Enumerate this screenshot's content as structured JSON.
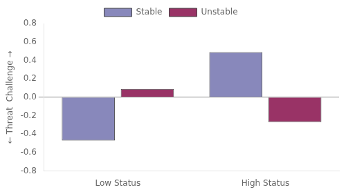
{
  "chart_data": {
    "type": "bar",
    "categories": [
      "Low Status",
      "High Status"
    ],
    "series": [
      {
        "name": "Stable",
        "color": "#8888bb",
        "values": [
          -0.47,
          0.49
        ]
      },
      {
        "name": "Unstable",
        "color": "#993366",
        "values": [
          0.09,
          -0.27
        ]
      }
    ],
    "ylabel": "← Threat  Challenge →",
    "ylim": [
      -0.8,
      0.8
    ],
    "yticks": [
      -0.8,
      -0.6,
      -0.4,
      -0.2,
      {
        "value": 0,
        "label": "0.0"
      },
      0.2,
      0.4,
      0.6,
      0.8
    ],
    "grid": false,
    "legend": "top"
  }
}
